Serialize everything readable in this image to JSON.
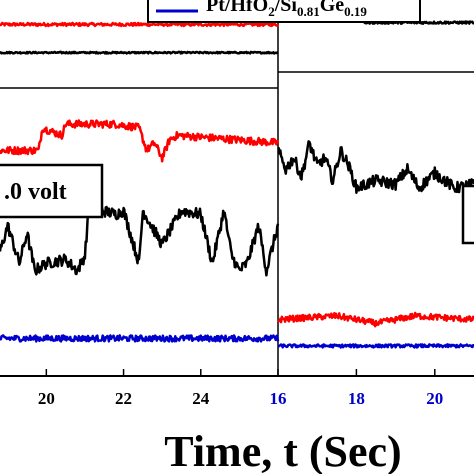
{
  "chart_data": {
    "type": "line",
    "xlabel": "Time, t (Sec)",
    "legend": {
      "prefix": "Pt/HfO",
      "sub1": "2",
      "mid": "/Si",
      "sub2": "0.81",
      "mid2": "Ge",
      "sub3": "0.19"
    },
    "annotation": ".0 volt",
    "panels": [
      {
        "name": "left",
        "xlim": [
          18.8,
          26.0
        ],
        "ticks": [
          {
            "value": 20,
            "label": "20",
            "color": "#000000"
          },
          {
            "value": 22,
            "label": "22",
            "color": "#000000"
          },
          {
            "value": 24,
            "label": "24",
            "color": "#000000"
          }
        ],
        "series": [
          {
            "color": "#ff0000",
            "level": 0.935,
            "x": [
              18.8,
              26.0
            ],
            "y": [
              0.935,
              0.935
            ],
            "noise": 0.004
          },
          {
            "color": "#000000",
            "level": 0.86,
            "x": [
              18.8,
              26.0
            ],
            "y": [
              0.86,
              0.86
            ],
            "noise": 0.002
          },
          {
            "color": "#ff0000",
            "level": 0.62,
            "x": [
              18.8,
              19.8,
              19.9,
              20.4,
              20.5,
              21.8,
              22.4,
              22.6,
              22.8,
              23.0,
              23.2,
              23.4,
              26.0
            ],
            "y": [
              0.6,
              0.6,
              0.66,
              0.64,
              0.67,
              0.67,
              0.66,
              0.6,
              0.62,
              0.58,
              0.63,
              0.64,
              0.62
            ],
            "noise": 0.01
          },
          {
            "color": "#000000",
            "level": 0.3,
            "x": [
              18.8,
              19.0,
              19.3,
              19.5,
              19.7,
              20.0,
              20.5,
              20.8,
              21.0,
              21.1,
              21.8,
              22.0,
              22.4,
              22.5,
              23.0,
              23.5,
              24.0,
              24.3,
              24.6,
              24.8,
              25.0,
              25.2,
              25.5,
              25.7,
              26.0
            ],
            "y": [
              0.33,
              0.4,
              0.3,
              0.38,
              0.28,
              0.3,
              0.31,
              0.28,
              0.32,
              0.45,
              0.43,
              0.44,
              0.3,
              0.44,
              0.35,
              0.44,
              0.43,
              0.3,
              0.44,
              0.32,
              0.28,
              0.3,
              0.4,
              0.28,
              0.4
            ],
            "noise": 0.015
          },
          {
            "color": "#0000cc",
            "level": 0.1,
            "x": [
              18.8,
              26.0
            ],
            "y": [
              0.1,
              0.1
            ],
            "noise": 0.008
          }
        ]
      },
      {
        "name": "right",
        "xlim": [
          16.0,
          21.0
        ],
        "ticks": [
          {
            "value": 16,
            "label": "16",
            "color": "#0000cc"
          },
          {
            "value": 18,
            "label": "18",
            "color": "#0000cc"
          },
          {
            "value": 20,
            "label": "20",
            "color": "#0000cc"
          }
        ],
        "series": [
          {
            "color": "#000000",
            "level": 0.945,
            "x": [
              16.0,
              18.0,
              18.2,
              21.0
            ],
            "y": [
              0.95,
              0.95,
              0.94,
              0.94
            ],
            "noise": 0.003
          },
          {
            "color": "#000000",
            "level": 0.55,
            "x": [
              16.0,
              16.2,
              16.4,
              16.6,
              16.8,
              17.0,
              17.2,
              17.4,
              17.6,
              17.8,
              18.0,
              18.5,
              19.0,
              19.3,
              19.6,
              20.0,
              20.5,
              21.0
            ],
            "y": [
              0.6,
              0.55,
              0.58,
              0.53,
              0.62,
              0.56,
              0.58,
              0.52,
              0.6,
              0.56,
              0.5,
              0.52,
              0.51,
              0.55,
              0.5,
              0.54,
              0.5,
              0.51
            ],
            "noise": 0.015
          },
          {
            "color": "#ff0000",
            "level": 0.15,
            "x": [
              16.0,
              17.5,
              18.5,
              19.5,
              21.0
            ],
            "y": [
              0.15,
              0.16,
              0.14,
              0.16,
              0.15
            ],
            "noise": 0.008
          },
          {
            "color": "#0000cc",
            "level": 0.08,
            "x": [
              16.0,
              21.0
            ],
            "y": [
              0.08,
              0.08
            ],
            "noise": 0.004
          }
        ]
      }
    ],
    "grid": false
  }
}
